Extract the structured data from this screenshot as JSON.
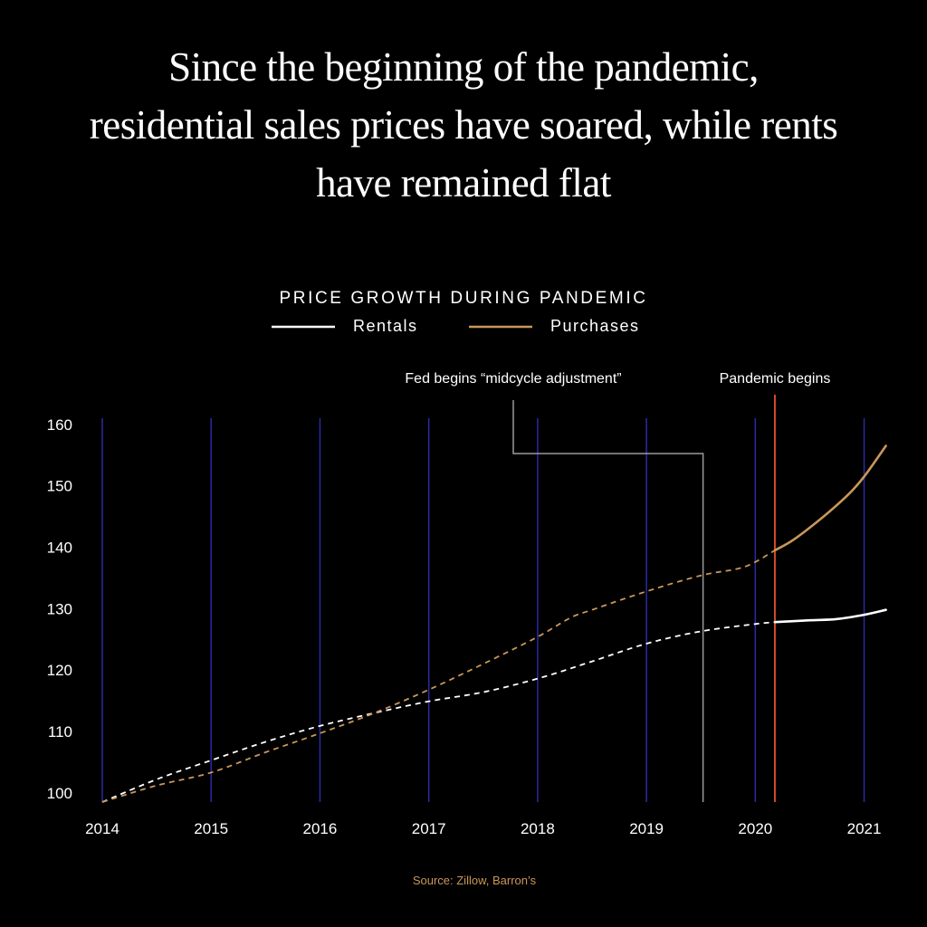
{
  "headline": {
    "lines": [
      "Since the beginning of the pandemic,",
      "residential sales prices have soared, while rents",
      "have remained flat"
    ]
  },
  "source": "Source: Zillow, Barron’s",
  "colors": {
    "background": "#000000",
    "rentals": "#ffffff",
    "purchases": "#c9975a",
    "gridline": "#2a2aa8",
    "pandemic_marker": "#e8502a",
    "fed_marker": "#9a9a9a",
    "source_text": "#c9975a"
  },
  "chart_data": {
    "type": "line",
    "title": "PRICE GROWTH DURING PANDEMIC",
    "xlabel": "",
    "ylabel": "",
    "xlim": [
      2014,
      2021.22
    ],
    "ylim": [
      98.5,
      161
    ],
    "x_ticks": [
      2014,
      2015,
      2016,
      2017,
      2018,
      2019,
      2020,
      2021
    ],
    "y_ticks": [
      100,
      110,
      120,
      130,
      140,
      150,
      160
    ],
    "grid": "vertical",
    "legend_position": "top-center",
    "series": [
      {
        "name": "Rentals",
        "color": "#ffffff",
        "x": [
          2014,
          2014.5,
          2015,
          2015.5,
          2016,
          2016.5,
          2017,
          2017.5,
          2018,
          2018.5,
          2019,
          2019.5,
          2020,
          2020.18,
          2020.5,
          2020.75,
          2021,
          2021.2
        ],
        "values": [
          98.5,
          102.2,
          105.3,
          108.3,
          110.9,
          113.0,
          114.9,
          116.4,
          118.6,
          121.4,
          124.3,
          126.3,
          127.5,
          127.8,
          128.1,
          128.3,
          129.0,
          129.8
        ],
        "dashed_until": 2020.18
      },
      {
        "name": "Purchases",
        "color": "#c9975a",
        "x": [
          2014,
          2014.5,
          2015,
          2015.5,
          2016,
          2016.5,
          2017,
          2017.5,
          2018,
          2018.3,
          2018.5,
          2019,
          2019.5,
          2019.9,
          2020.18,
          2020.35,
          2020.6,
          2020.85,
          2021,
          2021.2
        ],
        "values": [
          98.5,
          101.2,
          103.3,
          106.6,
          109.7,
          113.0,
          116.8,
          121.0,
          125.4,
          128.5,
          129.8,
          132.8,
          135.4,
          136.8,
          139.5,
          141.2,
          144.6,
          148.5,
          151.5,
          156.5
        ],
        "dashed_until": 2020.18
      }
    ],
    "annotations": [
      {
        "id": "fed",
        "text": "Fed begins “midcycle adjustment”",
        "x": 2019.52,
        "color": "#9a9a9a"
      },
      {
        "id": "pandemic",
        "text": "Pandemic begins",
        "x": 2020.18,
        "color": "#e8502a"
      }
    ]
  }
}
